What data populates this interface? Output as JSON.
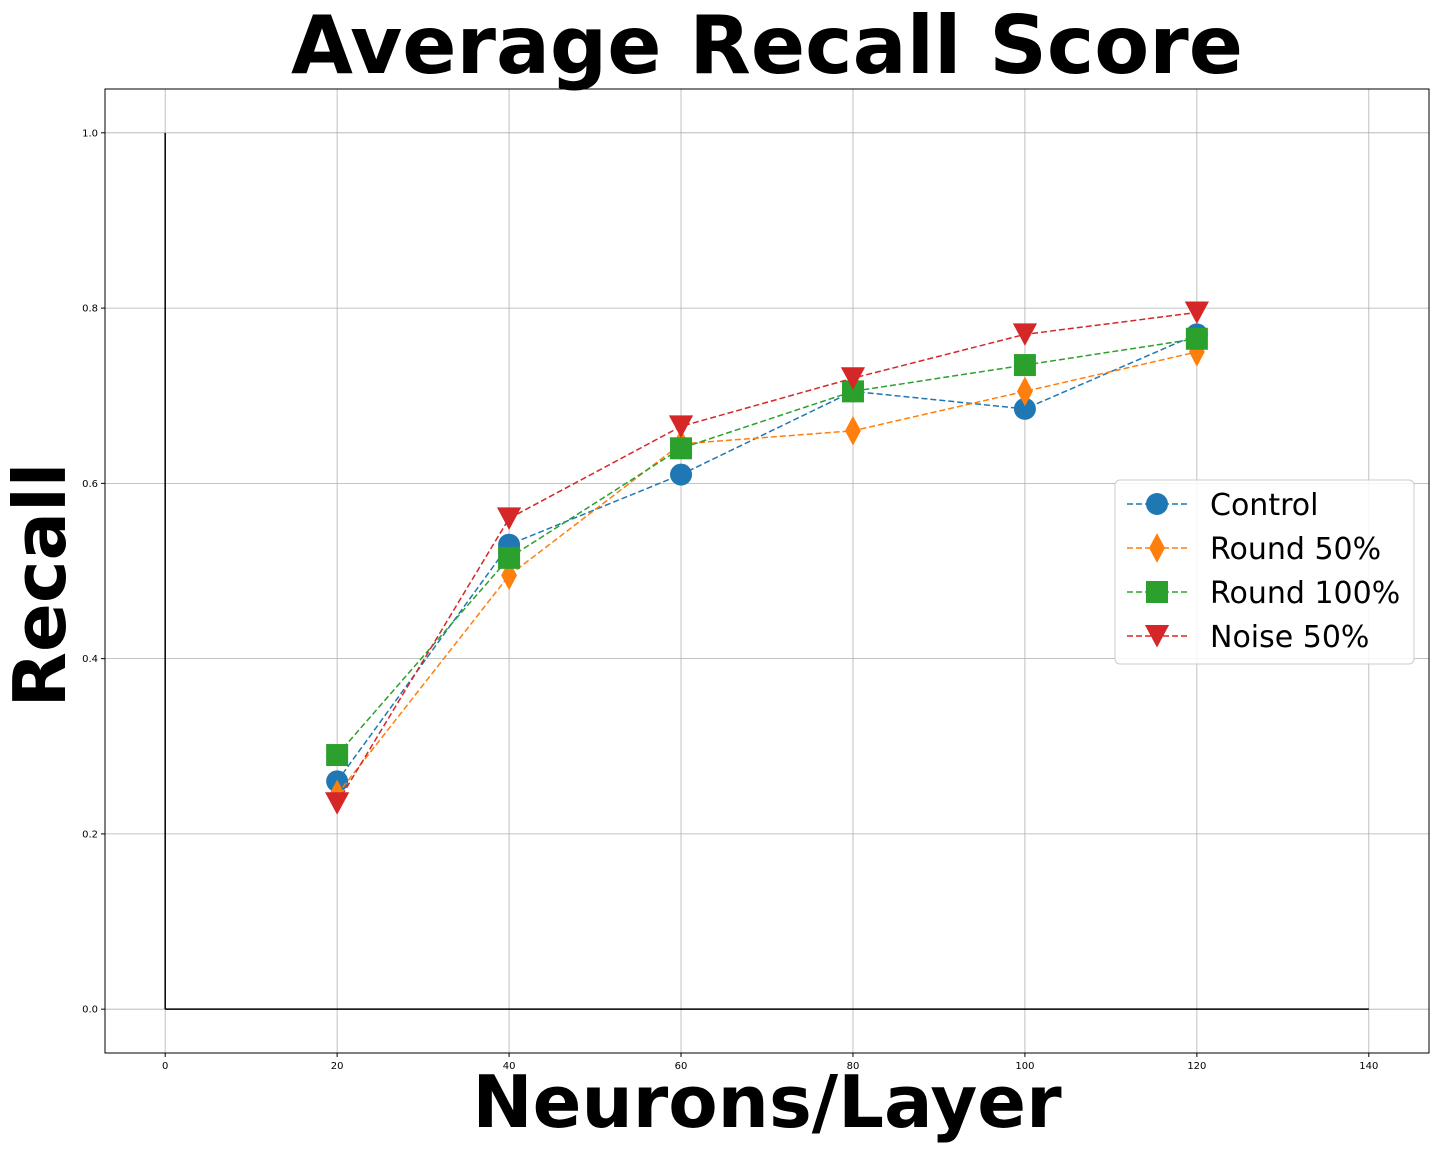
{
  "chart_data": {
    "type": "line",
    "title": "Average Recall Score",
    "xlabel": "Neurons/Layer",
    "ylabel": "Recall",
    "xlim": [
      -7,
      147
    ],
    "ylim": [
      -0.05,
      1.05
    ],
    "xticks": [
      0,
      20,
      40,
      60,
      80,
      100,
      120,
      140
    ],
    "yticks": [
      0.0,
      0.2,
      0.4,
      0.6,
      0.8,
      1.0
    ],
    "xtick_labels": [
      "0",
      "20",
      "40",
      "60",
      "80",
      "100",
      "120",
      "140"
    ],
    "ytick_labels": [
      "0.0",
      "0.2",
      "0.4",
      "0.6",
      "0.8",
      "1.0"
    ],
    "grid": true,
    "legend_position": "center-right",
    "reference_lines": [
      {
        "x": [
          0,
          0
        ],
        "y": [
          0,
          1.0
        ],
        "color": "#000000"
      },
      {
        "x": [
          0,
          140
        ],
        "y": [
          0,
          0
        ],
        "color": "#000000"
      }
    ],
    "x": [
      20,
      40,
      60,
      80,
      100,
      120
    ],
    "series": [
      {
        "name": "Control",
        "values": [
          0.26,
          0.53,
          0.61,
          0.705,
          0.685,
          0.77
        ],
        "color": "#1f77b4",
        "marker": "circle"
      },
      {
        "name": "Round 50%",
        "values": [
          0.245,
          0.495,
          0.645,
          0.66,
          0.705,
          0.75
        ],
        "color": "#ff7f0e",
        "marker": "diamond"
      },
      {
        "name": "Round 100%",
        "values": [
          0.29,
          0.515,
          0.64,
          0.705,
          0.735,
          0.765
        ],
        "color": "#2ca02c",
        "marker": "square"
      },
      {
        "name": "Noise 50%",
        "values": [
          0.235,
          0.56,
          0.665,
          0.72,
          0.77,
          0.795
        ],
        "color": "#d62728",
        "marker": "triangle-down"
      }
    ]
  }
}
